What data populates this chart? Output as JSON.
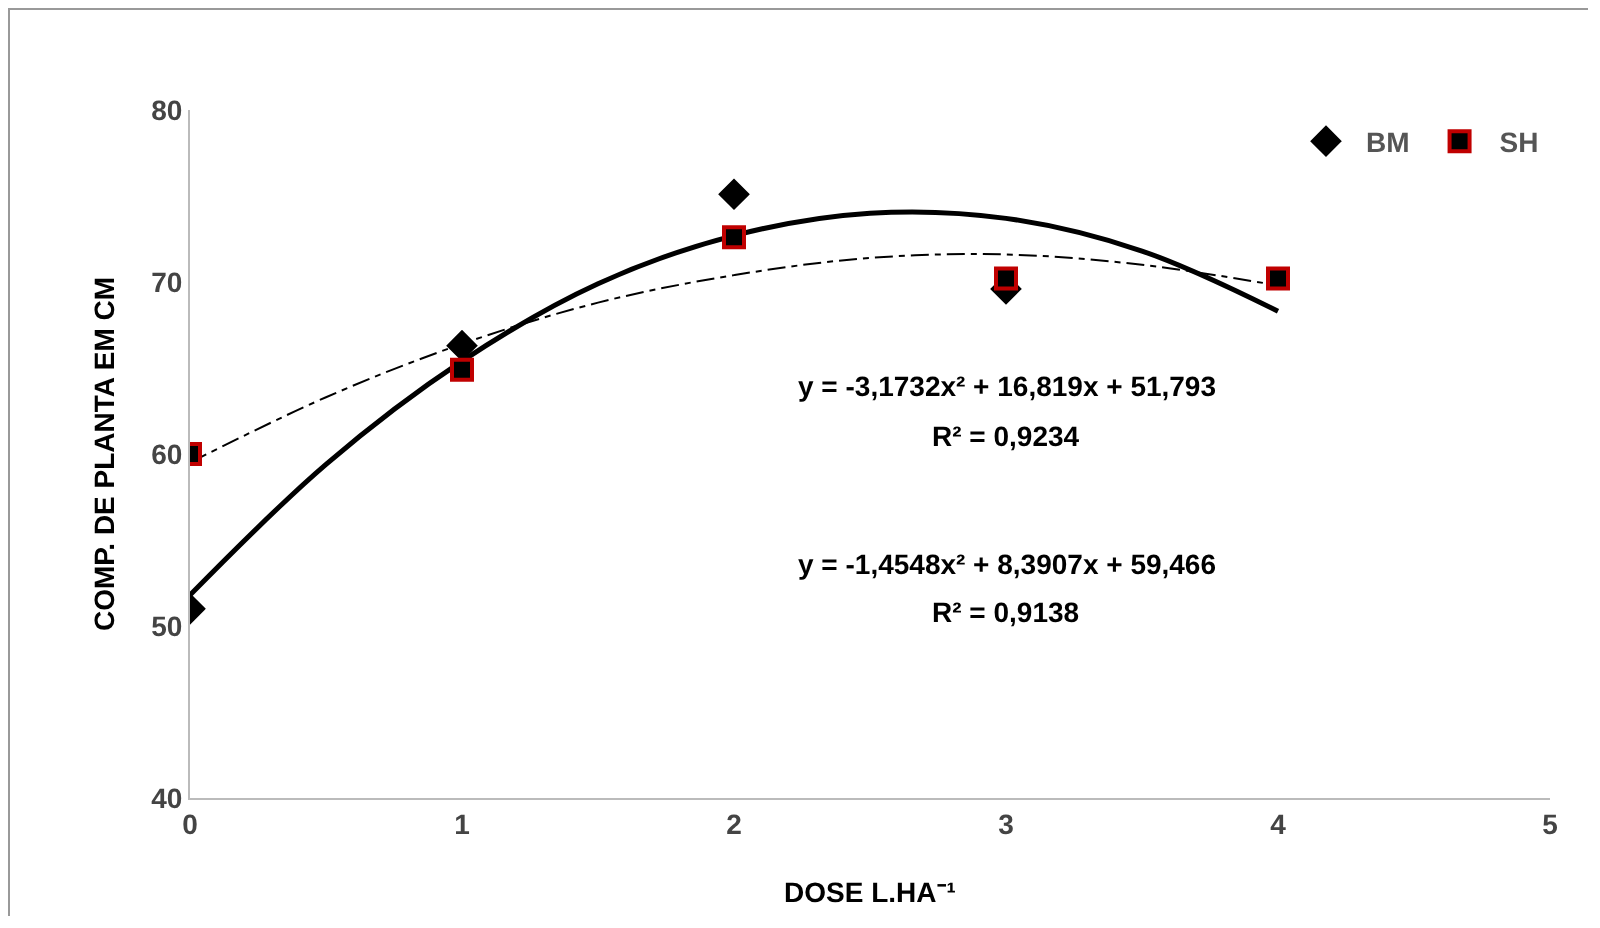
{
  "chart_data": {
    "type": "scatter",
    "xlabel": "DOSE L.HA⁻¹",
    "ylabel": "COMP. DE PLANTA EM CM",
    "xlim": [
      0,
      5
    ],
    "xticks": [
      0,
      1,
      2,
      3,
      4,
      5
    ],
    "ylim": [
      40,
      80
    ],
    "yticks": [
      40,
      50,
      60,
      70,
      80
    ],
    "grid": false,
    "legend": "top right",
    "series": [
      {
        "name": "BM",
        "marker": "diamond",
        "color": "#000000",
        "x": [
          0,
          1,
          2,
          3
        ],
        "values": [
          51,
          66.3,
          75.1,
          69.6
        ]
      },
      {
        "name": "SH",
        "marker": "square",
        "color": "#c00000",
        "x": [
          0,
          1,
          2,
          3,
          4
        ],
        "values": [
          60,
          64.9,
          72.6,
          70.2,
          70.2
        ]
      },
      {
        "type": "line",
        "marker": "none",
        "line_style": "solid",
        "color": "#000000",
        "x": [
          0,
          0.5,
          1,
          1.5,
          2,
          2.5,
          3,
          3.5,
          4
        ],
        "values": [
          51.8,
          59.4,
          65.4,
          69.9,
          72.7,
          74,
          73.7,
          71.8,
          68.3
        ]
      },
      {
        "type": "line",
        "marker": "none",
        "line_style": "dashed",
        "color": "#000000",
        "x": [
          0,
          0.5,
          1,
          1.5,
          2,
          2.5,
          3,
          3.5,
          4
        ],
        "values": [
          59.5,
          63.3,
          66.4,
          68.8,
          70.4,
          71.4,
          71.6,
          71,
          69.8
        ]
      }
    ],
    "annotations": [
      "y = -3,1732x² + 16,819x + 51,793",
      "R² = 0,9234",
      "y = -1,4548x² + 8,3907x + 59,466",
      "R² = 0,9138"
    ]
  }
}
